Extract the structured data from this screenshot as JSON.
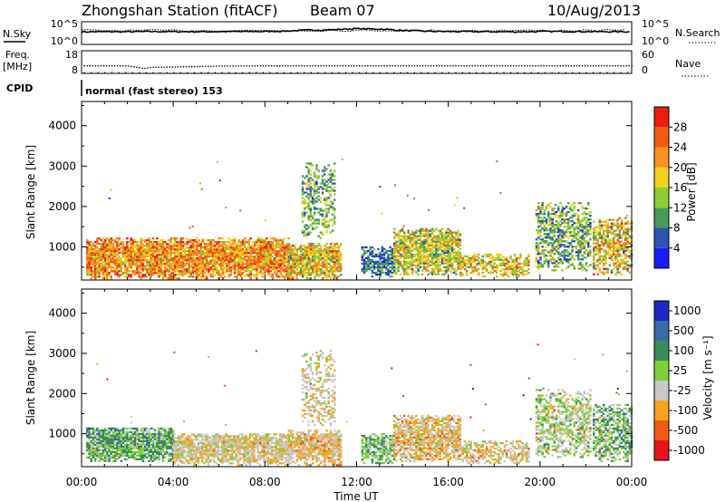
{
  "header": {
    "station": "Zhongshan Station (fitACF)",
    "beam": "Beam 07",
    "date": "10/Aug/2013"
  },
  "top_panels": {
    "nsky_label": "N.Sky",
    "nsky_ticks": [
      "10^5",
      "10^0"
    ],
    "nsearch_label": "N.Search",
    "nsearch_ticks": [
      "10^5",
      "10^0"
    ],
    "freq_label": "Freq.",
    "freq_unit": "[MHz]",
    "freq_ticks": [
      "18",
      "8"
    ],
    "nave_label": "Nave",
    "nave_ticks": [
      "60",
      "0"
    ],
    "cpid_label": "CPID",
    "cpid_text": "normal (fast stereo) 153"
  },
  "axes": {
    "ylabel": "Slant Range [km]",
    "xlabel": "Time UT",
    "xticks": [
      "00:00",
      "04:00",
      "08:00",
      "12:00",
      "16:00",
      "20:00",
      "00:00"
    ],
    "yticks": [
      "1000",
      "2000",
      "3000",
      "4000"
    ]
  },
  "colors": {
    "power": [
      "#1a1aff",
      "#2a55b4",
      "#4a9a5a",
      "#8ccd35",
      "#f2d01e",
      "#f7931e",
      "#f05a14",
      "#ee1c0e"
    ],
    "velocity": [
      "#e8141c",
      "#f25a14",
      "#f7a31e",
      "#c8c8c8",
      "#7fcf3a",
      "#3a8c5a",
      "#3a6aa8",
      "#1a2ac8"
    ]
  },
  "chart_data": [
    {
      "type": "line",
      "name": "N.Sky / N.Search",
      "x": [
        0,
        1,
        2,
        3,
        4,
        5,
        6,
        7,
        8,
        9,
        10,
        11,
        12,
        13,
        14,
        15,
        16,
        17,
        18,
        19,
        20,
        21,
        22,
        23,
        24
      ],
      "series": [
        {
          "values": [
            600,
            650,
            620,
            700,
            680,
            640,
            660,
            700,
            720,
            900,
            1500,
            1800,
            3000,
            2500,
            1200,
            800,
            700,
            660,
            640,
            620,
            700,
            760,
            700,
            650,
            640
          ]
        }
      ],
      "ylim": [
        1,
        100000
      ],
      "log_y": true
    },
    {
      "type": "scatter",
      "name": "Freq. / Nave",
      "x": [
        0,
        2,
        2.5,
        2.7,
        3,
        6,
        8,
        12,
        16,
        20,
        24
      ],
      "series": [
        {
          "values": [
            11.6,
            11.6,
            10.8,
            10.4,
            10.9,
            11.5,
            11.6,
            11.6,
            11.6,
            11.6,
            11.6
          ]
        }
      ],
      "ylim": [
        8,
        18
      ]
    },
    {
      "type": "heatmap",
      "title": "Power",
      "xlabel": "Time UT",
      "ylabel": "Slant Range [km]",
      "xlim": [
        0,
        24
      ],
      "ylim": [
        180,
        4600
      ],
      "colorbar": {
        "label": "Power [dB]",
        "ticks": [
          "4",
          "8",
          "12",
          "16",
          "20",
          "24",
          "28"
        ],
        "range": [
          0,
          32
        ]
      },
      "clusters": [
        {
          "t0": 0.2,
          "t1": 9.0,
          "r0": 200,
          "r1": 1200,
          "density": 0.92,
          "mean": 22,
          "spread": 7
        },
        {
          "t0": 9.0,
          "t1": 11.3,
          "r0": 200,
          "r1": 1100,
          "density": 0.9,
          "mean": 18,
          "spread": 8
        },
        {
          "t0": 9.6,
          "t1": 11.0,
          "r0": 1200,
          "r1": 3050,
          "density": 0.45,
          "mean": 12,
          "spread": 6
        },
        {
          "t0": 12.2,
          "t1": 13.6,
          "r0": 250,
          "r1": 1000,
          "density": 0.75,
          "mean": 8,
          "spread": 5
        },
        {
          "t0": 13.6,
          "t1": 16.5,
          "r0": 300,
          "r1": 1450,
          "density": 0.82,
          "mean": 16,
          "spread": 7
        },
        {
          "t0": 16.5,
          "t1": 19.5,
          "r0": 250,
          "r1": 800,
          "density": 0.65,
          "mean": 18,
          "spread": 7
        },
        {
          "t0": 19.8,
          "t1": 22.2,
          "r0": 400,
          "r1": 2100,
          "density": 0.6,
          "mean": 12,
          "spread": 7
        },
        {
          "t0": 22.3,
          "t1": 24.0,
          "r0": 300,
          "r1": 1700,
          "density": 0.7,
          "mean": 18,
          "spread": 9
        }
      ]
    },
    {
      "type": "heatmap",
      "title": "Velocity",
      "xlabel": "Time UT",
      "ylabel": "Slant Range [km]",
      "xlim": [
        0,
        24
      ],
      "ylim": [
        180,
        4600
      ],
      "colorbar": {
        "label": "Velocity [m s⁻¹]",
        "ticks": [
          "-1000",
          "-500",
          "-100",
          "-25",
          "25",
          "100",
          "500",
          "1000"
        ],
        "range": [
          -1200,
          1200
        ]
      },
      "clusters": [
        {
          "t0": 0.2,
          "t1": 4.0,
          "r0": 300,
          "r1": 1150,
          "density": 0.9,
          "mean": 300,
          "spread": 400
        },
        {
          "t0": 4.0,
          "t1": 9.0,
          "r0": 200,
          "r1": 1000,
          "density": 0.88,
          "mean": -200,
          "spread": 300
        },
        {
          "t0": 9.0,
          "t1": 11.3,
          "r0": 200,
          "r1": 1100,
          "density": 0.85,
          "mean": -300,
          "spread": 300
        },
        {
          "t0": 9.6,
          "t1": 11.0,
          "r0": 1200,
          "r1": 3050,
          "density": 0.45,
          "mean": -200,
          "spread": 250
        },
        {
          "t0": 12.2,
          "t1": 13.6,
          "r0": 250,
          "r1": 1000,
          "density": 0.75,
          "mean": 250,
          "spread": 350
        },
        {
          "t0": 13.6,
          "t1": 16.5,
          "r0": 300,
          "r1": 1450,
          "density": 0.82,
          "mean": -300,
          "spread": 350
        },
        {
          "t0": 16.5,
          "t1": 19.5,
          "r0": 250,
          "r1": 800,
          "density": 0.65,
          "mean": -250,
          "spread": 300
        },
        {
          "t0": 19.8,
          "t1": 22.2,
          "r0": 400,
          "r1": 2100,
          "density": 0.6,
          "mean": 0,
          "spread": 400
        },
        {
          "t0": 22.3,
          "t1": 24.0,
          "r0": 300,
          "r1": 1700,
          "density": 0.7,
          "mean": 200,
          "spread": 450
        }
      ]
    }
  ]
}
